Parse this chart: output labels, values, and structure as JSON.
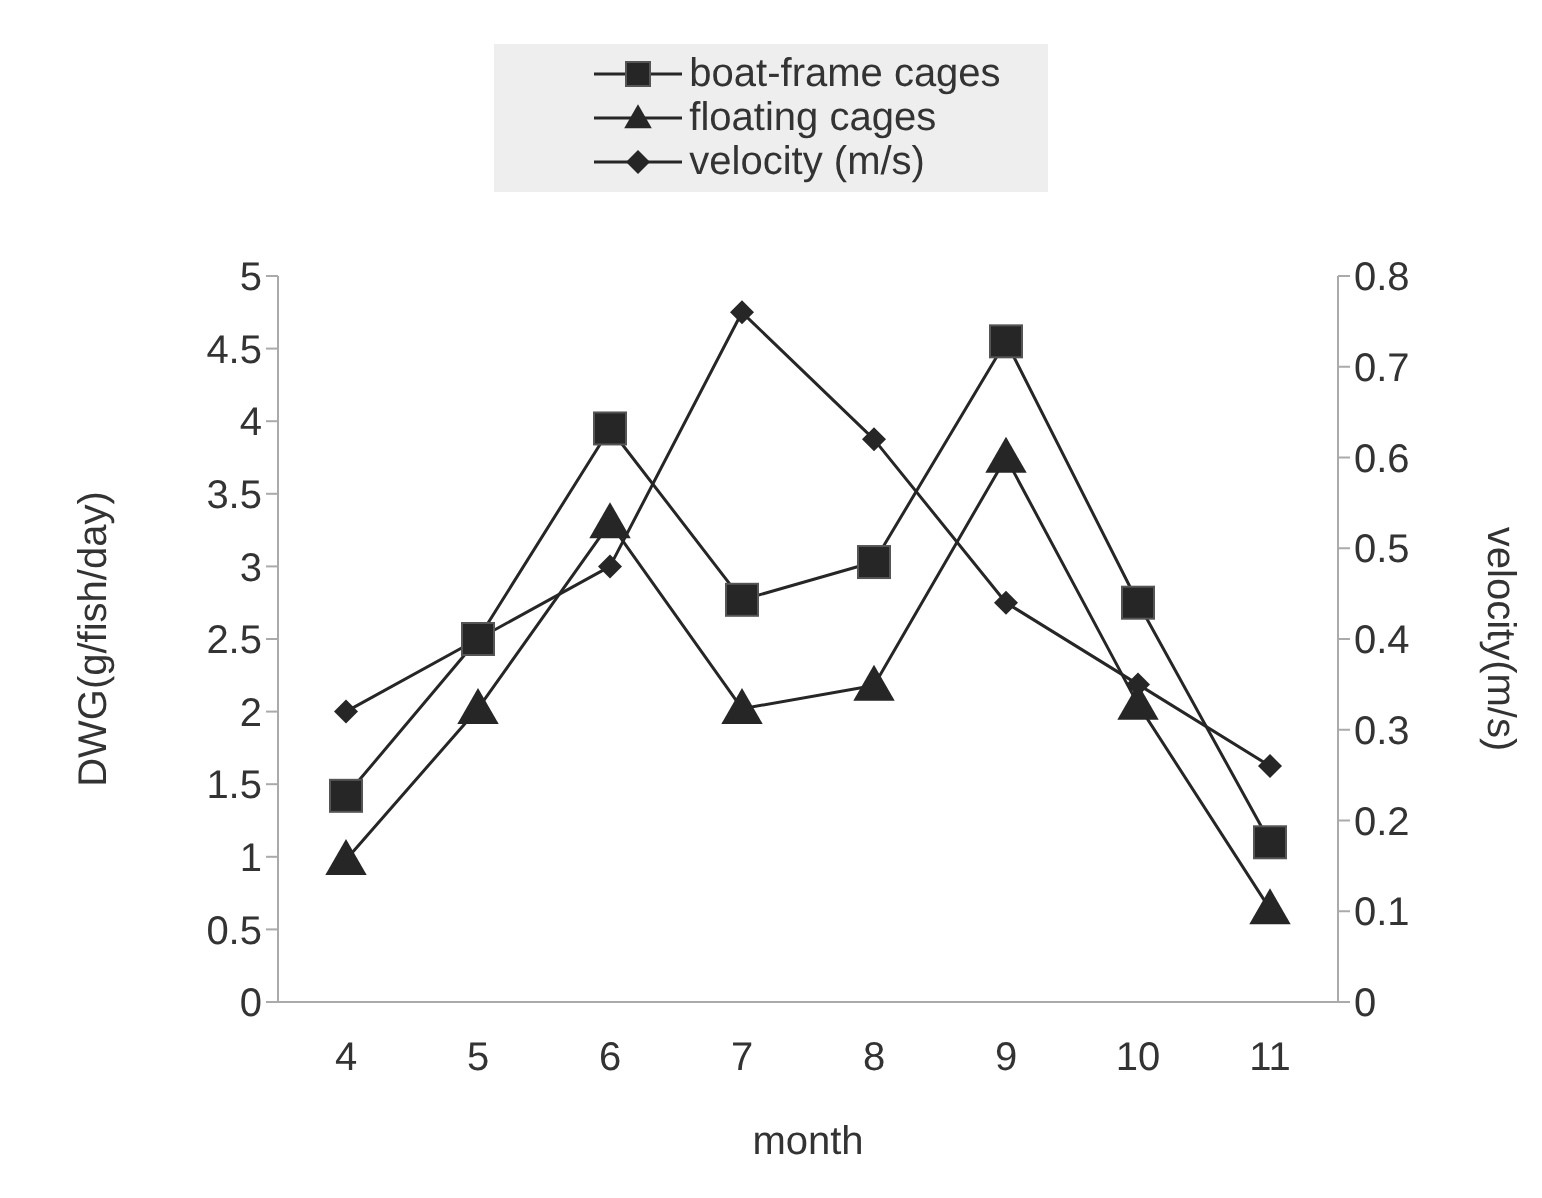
{
  "chart_data": {
    "type": "line",
    "xlabel": "month",
    "ylabel": "DWG(g/fish/day)",
    "y2label": "velocity(m/s)",
    "categories": [
      "4",
      "5",
      "6",
      "7",
      "8",
      "9",
      "10",
      "11"
    ],
    "series": [
      {
        "name": "boat-frame cages",
        "color": "#262626",
        "marker": "square",
        "values": [
          1.42,
          2.5,
          3.95,
          2.77,
          3.03,
          4.55,
          2.75,
          1.1
        ]
      },
      {
        "name": "floating cages",
        "color": "#262626",
        "marker": "triangle",
        "values": [
          0.98,
          2.02,
          3.3,
          2.02,
          2.18,
          3.75,
          2.05,
          0.64
        ]
      },
      {
        "name": "velocity (m/s)",
        "color": "#262626",
        "marker": "diamond",
        "axis": "y2",
        "values": [
          0.32,
          0.4,
          0.48,
          0.76,
          0.62,
          0.44,
          0.35,
          0.26
        ]
      }
    ],
    "ylim": [
      0,
      5
    ],
    "yticks": [
      0,
      0.5,
      1,
      1.5,
      2,
      2.5,
      3,
      3.5,
      4,
      4.5,
      5
    ],
    "y2lim": [
      0,
      0.8
    ],
    "y2ticks": [
      0,
      0.1,
      0.2,
      0.3,
      0.4,
      0.5,
      0.6,
      0.7,
      0.8
    ],
    "grid": false,
    "legend": "top",
    "line_style": "solid"
  }
}
